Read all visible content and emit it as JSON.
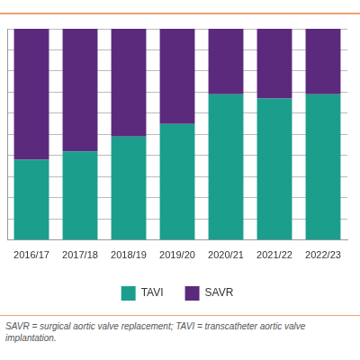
{
  "chart_data": {
    "type": "bar",
    "stacked": true,
    "categories": [
      "2016/17",
      "2017/18",
      "2018/19",
      "2019/20",
      "2020/21",
      "2021/22",
      "2022/23"
    ],
    "series": [
      {
        "name": "TAVI",
        "color": "#1b9e8c",
        "values": [
          38,
          42,
          49,
          55,
          69,
          67,
          69
        ]
      },
      {
        "name": "SAVR",
        "color": "#5b2a7c",
        "values": [
          62,
          58,
          51,
          45,
          31,
          33,
          31
        ]
      }
    ],
    "ylim": [
      0,
      100
    ],
    "yticks": [
      0,
      10,
      20,
      30,
      40,
      50,
      60,
      70,
      80,
      90,
      100
    ],
    "grid": true,
    "legend": "bottom",
    "tick_labels": "x",
    "annotations": [
      "SAVR = surgical aortic valve replacement; TAVI = transcatheter aortic valve implantation."
    ]
  }
}
